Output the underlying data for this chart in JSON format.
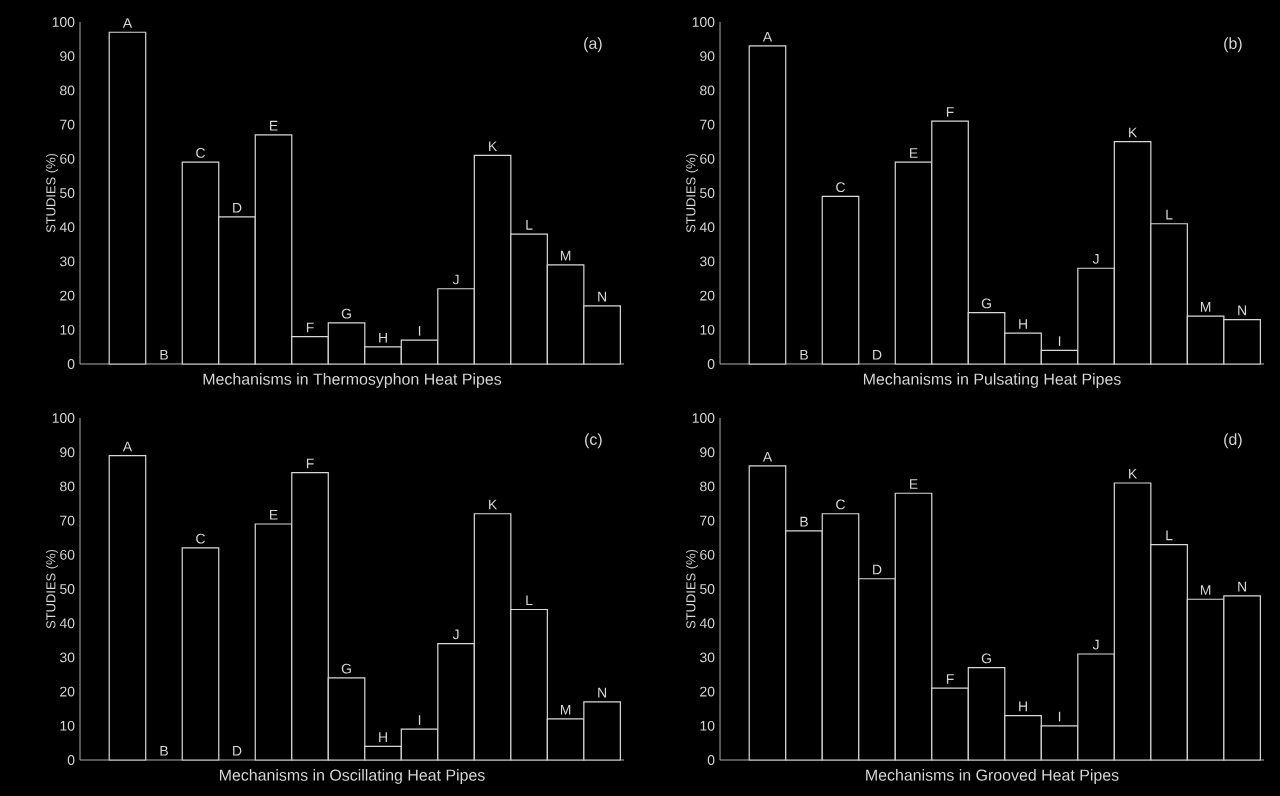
{
  "chart_data": [
    {
      "type": "bar",
      "categories": [
        "A",
        "B",
        "C",
        "D",
        "E",
        "F",
        "G",
        "H",
        "I",
        "J",
        "K",
        "L",
        "M",
        "N"
      ],
      "values": [
        97,
        0,
        59,
        43,
        67,
        8,
        12,
        5,
        7,
        22,
        61,
        38,
        29,
        17
      ],
      "color": "#000000",
      "xlabel": "Mechanisms in Thermosyphon Heat Pipes",
      "ylabel": "STUDIES (%)",
      "ylim": [
        0,
        100
      ],
      "yticks": [
        0,
        10,
        20,
        30,
        40,
        50,
        60,
        70,
        80,
        90,
        100
      ],
      "annotations": [
        "(a)"
      ]
    },
    {
      "type": "bar",
      "categories": [
        "A",
        "B",
        "C",
        "D",
        "E",
        "F",
        "G",
        "H",
        "I",
        "J",
        "K",
        "L",
        "M",
        "N"
      ],
      "values": [
        93,
        0,
        49,
        0,
        59,
        71,
        15,
        9,
        4,
        28,
        65,
        41,
        14,
        13
      ],
      "color": "#000000",
      "xlabel": "Mechanisms in Pulsating Heat Pipes",
      "ylabel": "STUDIES (%)",
      "ylim": [
        0,
        100
      ],
      "yticks": [
        0,
        10,
        20,
        30,
        40,
        50,
        60,
        70,
        80,
        90,
        100
      ],
      "annotations": [
        "(b)"
      ]
    },
    {
      "type": "bar",
      "categories": [
        "A",
        "B",
        "C",
        "D",
        "E",
        "F",
        "G",
        "H",
        "I",
        "J",
        "K",
        "L",
        "M",
        "N"
      ],
      "values": [
        89,
        0,
        62,
        0,
        69,
        84,
        24,
        4,
        9,
        34,
        72,
        44,
        12,
        17
      ],
      "color": "#000000",
      "xlabel": "Mechanisms in Oscillating Heat Pipes",
      "ylabel": "STUDIES (%)",
      "ylim": [
        0,
        100
      ],
      "yticks": [
        0,
        10,
        20,
        30,
        40,
        50,
        60,
        70,
        80,
        90,
        100
      ],
      "annotations": [
        "(c)"
      ]
    },
    {
      "type": "bar",
      "categories": [
        "A",
        "B",
        "C",
        "D",
        "E",
        "F",
        "G",
        "H",
        "I",
        "J",
        "K",
        "L",
        "M",
        "N"
      ],
      "values": [
        86,
        67,
        72,
        53,
        78,
        21,
        27,
        13,
        10,
        31,
        81,
        63,
        47,
        48
      ],
      "color": "#000000",
      "xlabel": "Mechanisms in Grooved Heat Pipes",
      "ylabel": "STUDIES (%)",
      "ylim": [
        0,
        100
      ],
      "yticks": [
        0,
        10,
        20,
        30,
        40,
        50,
        60,
        70,
        80,
        90,
        100
      ],
      "annotations": [
        "(d)"
      ]
    }
  ]
}
